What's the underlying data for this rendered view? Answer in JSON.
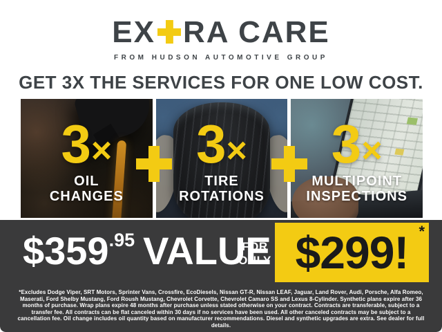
{
  "brand": {
    "logo_prefix": "EX",
    "logo_plus": "+",
    "logo_suffix": "RA CARE",
    "tagline": "FROM HUDSON AUTOMOTIVE GROUP"
  },
  "headline": "GET 3X THE SERVICES FOR ONE LOW COST.",
  "plus_separator": "+",
  "services": [
    {
      "multiplier_num": "3",
      "multiplier_x": "×",
      "label_line1": "OIL",
      "label_line2": "CHANGES",
      "photo": "oil-pour-photo"
    },
    {
      "multiplier_num": "3",
      "multiplier_x": "×",
      "label_line1": "TIRE",
      "label_line2": "ROTATIONS",
      "photo": "tire-hold-photo"
    },
    {
      "multiplier_num": "3",
      "multiplier_x": "×",
      "label_line1": "MULTIPOINT",
      "label_line2": "INSPECTIONS",
      "photo": "laptop-inspection-photo"
    }
  ],
  "pricing": {
    "value_dollars": "$359",
    "value_cents": ".95",
    "value_word": "VALUE",
    "for_only_line1": "FOR",
    "for_only_line2": "ONLY",
    "price": "$299!",
    "price_asterisk": "*"
  },
  "disclaimer": "*Excludes Dodge Viper, SRT Motors, Sprinter Vans, Crossfire, EcoDiesels, Nissan GT-R, Nissan LEAF, Jaguar, Land Rover, Audi, Porsche, Alfa Romeo, Maserati, Ford Shelby Mustang, Ford Roush Mustang, Chevrolet Corvette, Chevrolet Camaro SS and Lexus 8-Cylinder. Synthetic plans expire after 36 months of purchase. Wrap plans expire 48 months after purchase unless stated otherwise on your contract. Contracts are transferable, subject to a transfer fee. All contracts can be flat canceled within 30 days if no services have been used. All other canceled contracts may be subject to a cancellation fee. Oil change includes oil quantity based on manufacturer recommendations. Diesel and synthetic upgrades are extra. See dealer for full details.",
  "colors": {
    "yellow": "#F3CB13",
    "charcoal": "#3A3A3B",
    "dark_text": "#3E4347",
    "price_black": "#1A1A1A"
  }
}
